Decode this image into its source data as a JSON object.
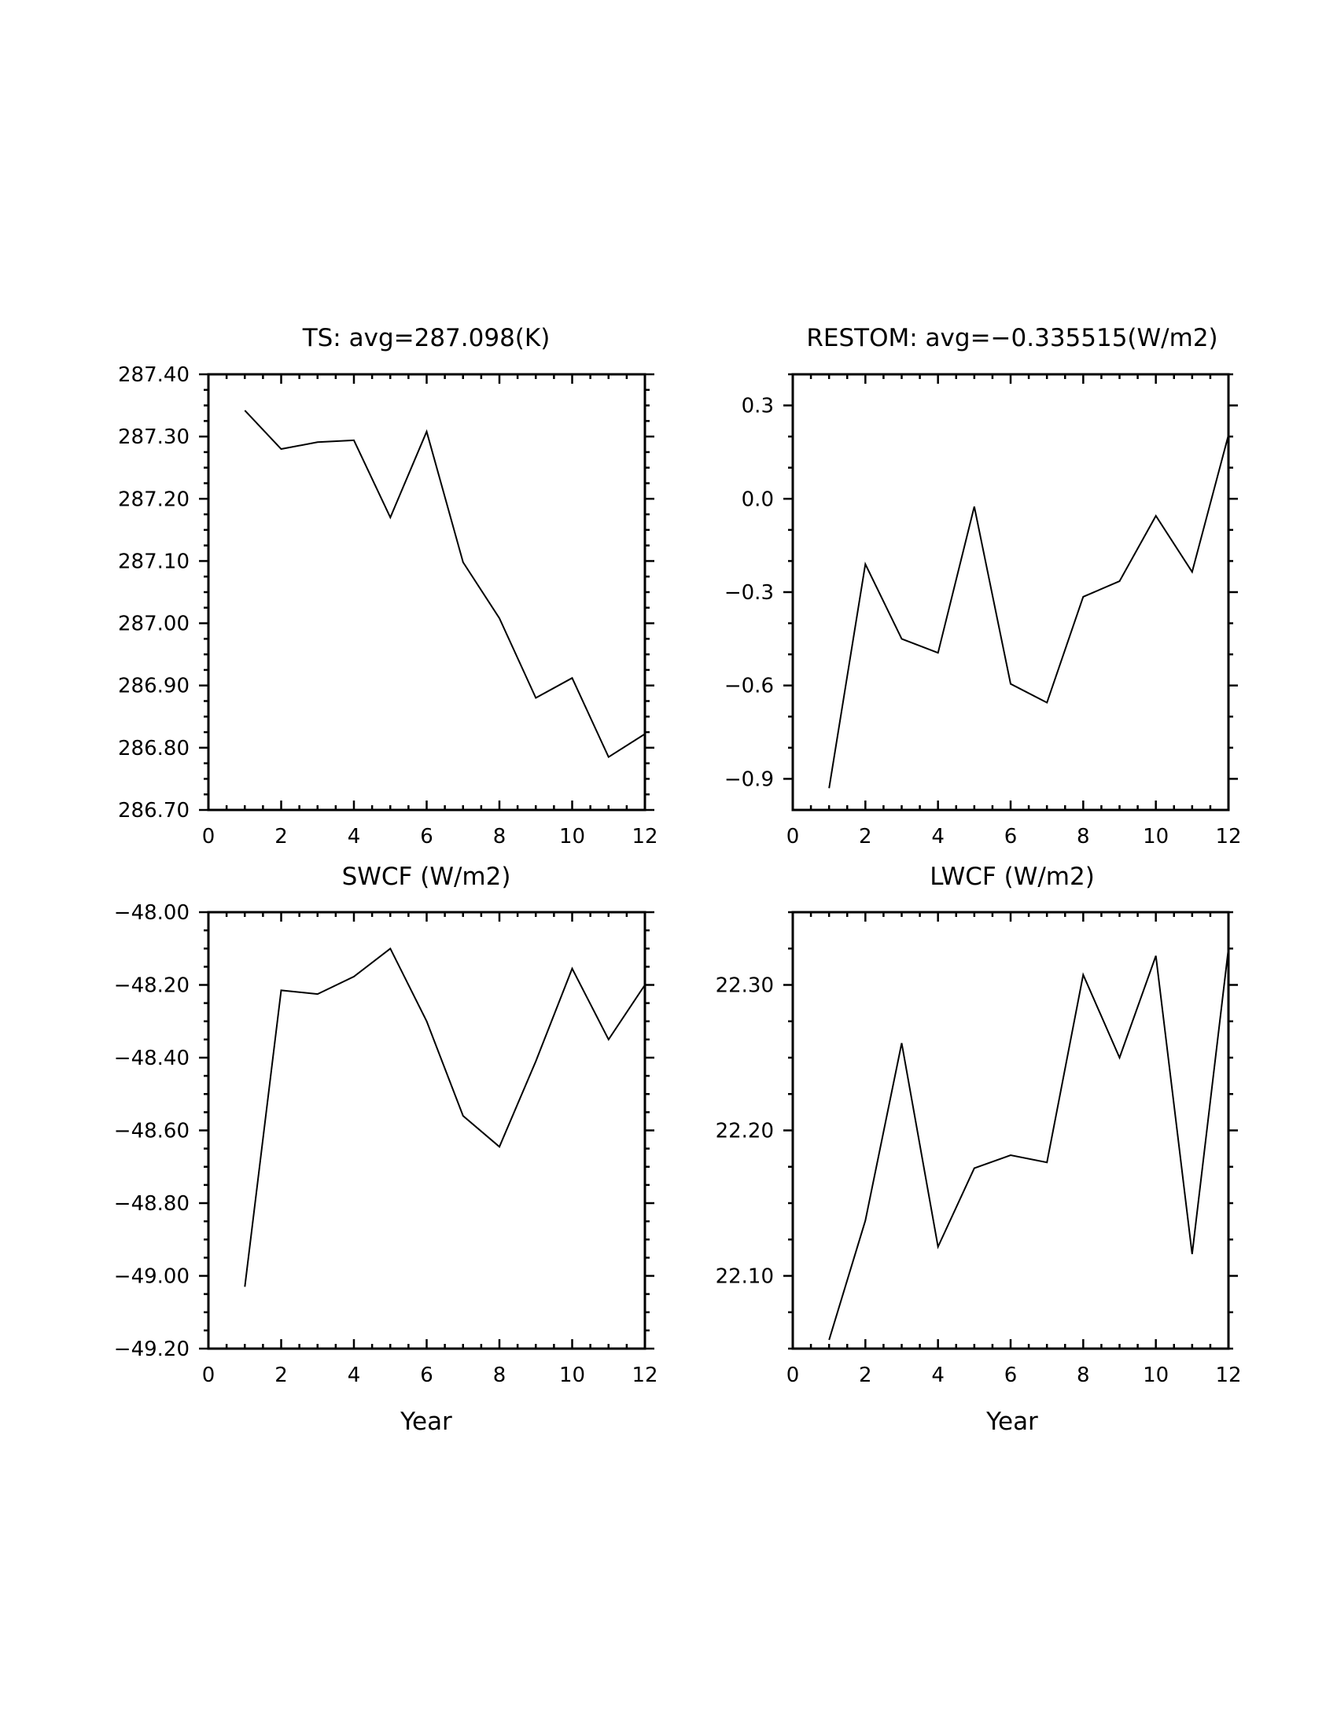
{
  "chart_data": [
    {
      "type": "line",
      "title": "TS: avg=287.098(K)",
      "xlabel": "",
      "ylabel": "",
      "xlim": [
        0,
        12
      ],
      "ylim": [
        286.7,
        287.4
      ],
      "x_ticks": [
        0,
        2,
        4,
        6,
        8,
        10,
        12
      ],
      "x_tick_labels": [
        "0",
        "2",
        "4",
        "6",
        "8",
        "10",
        "12"
      ],
      "y_ticks": [
        286.7,
        286.8,
        286.9,
        287.0,
        287.1,
        287.2,
        287.3,
        287.4
      ],
      "y_tick_labels": [
        "286.70",
        "286.80",
        "286.90",
        "287.00",
        "287.10",
        "287.20",
        "287.30",
        "287.40"
      ],
      "x_minor_step": 0.5,
      "y_minor_step": 0.025,
      "grid": false,
      "series": [
        {
          "x": [
            1,
            2,
            3,
            4,
            5,
            6,
            7,
            8,
            9,
            10,
            11,
            12
          ],
          "values": [
            287.342,
            287.28,
            287.291,
            287.294,
            287.17,
            287.308,
            287.098,
            287.008,
            286.88,
            286.912,
            286.785,
            286.822
          ]
        }
      ]
    },
    {
      "type": "line",
      "title": "RESTOM: avg=−0.335515(W/m2)",
      "xlabel": "",
      "ylabel": "",
      "xlim": [
        0,
        12
      ],
      "ylim": [
        -1.0,
        0.4
      ],
      "x_ticks": [
        0,
        2,
        4,
        6,
        8,
        10,
        12
      ],
      "x_tick_labels": [
        "0",
        "2",
        "4",
        "6",
        "8",
        "10",
        "12"
      ],
      "y_ticks": [
        -0.9,
        -0.6,
        -0.3,
        0.0,
        0.3
      ],
      "y_tick_labels": [
        "−0.9",
        "−0.6",
        "−0.3",
        "0.0",
        "0.3"
      ],
      "x_minor_step": 0.5,
      "y_minor_step": 0.1,
      "grid": false,
      "series": [
        {
          "x": [
            1,
            2,
            3,
            4,
            5,
            6,
            7,
            8,
            9,
            10,
            11,
            12
          ],
          "values": [
            -0.93,
            -0.21,
            -0.45,
            -0.495,
            -0.025,
            -0.595,
            -0.655,
            -0.315,
            -0.265,
            -0.055,
            -0.235,
            0.205
          ]
        }
      ]
    },
    {
      "type": "line",
      "title": "SWCF (W/m2)",
      "xlabel": "Year",
      "ylabel": "",
      "xlim": [
        0,
        12
      ],
      "ylim": [
        -49.2,
        -48.0
      ],
      "x_ticks": [
        0,
        2,
        4,
        6,
        8,
        10,
        12
      ],
      "x_tick_labels": [
        "0",
        "2",
        "4",
        "6",
        "8",
        "10",
        "12"
      ],
      "y_ticks": [
        -49.2,
        -49.0,
        -48.8,
        -48.6,
        -48.4,
        -48.2,
        -48.0
      ],
      "y_tick_labels": [
        "−49.20",
        "−49.00",
        "−48.80",
        "−48.60",
        "−48.40",
        "−48.20",
        "−48.00"
      ],
      "x_minor_step": 0.5,
      "y_minor_step": 0.05,
      "grid": false,
      "series": [
        {
          "x": [
            1,
            2,
            3,
            4,
            5,
            6,
            7,
            8,
            9,
            10,
            11,
            12
          ],
          "values": [
            -49.03,
            -48.215,
            -48.225,
            -48.177,
            -48.1,
            -48.3,
            -48.56,
            -48.645,
            -48.41,
            -48.155,
            -48.35,
            -48.2
          ]
        }
      ]
    },
    {
      "type": "line",
      "title": "LWCF (W/m2)",
      "xlabel": "Year",
      "ylabel": "",
      "xlim": [
        0,
        12
      ],
      "ylim": [
        22.05,
        22.35
      ],
      "x_ticks": [
        0,
        2,
        4,
        6,
        8,
        10,
        12
      ],
      "x_tick_labels": [
        "0",
        "2",
        "4",
        "6",
        "8",
        "10",
        "12"
      ],
      "y_ticks": [
        22.1,
        22.2,
        22.3
      ],
      "y_tick_labels": [
        "22.10",
        "22.20",
        "22.30"
      ],
      "x_minor_step": 0.5,
      "y_minor_step": 0.025,
      "grid": false,
      "series": [
        {
          "x": [
            1,
            2,
            3,
            4,
            5,
            6,
            7,
            8,
            9,
            10,
            11,
            12
          ],
          "values": [
            22.056,
            22.138,
            22.26,
            22.12,
            22.174,
            22.183,
            22.178,
            22.307,
            22.25,
            22.32,
            22.115,
            22.325
          ]
        }
      ]
    }
  ]
}
